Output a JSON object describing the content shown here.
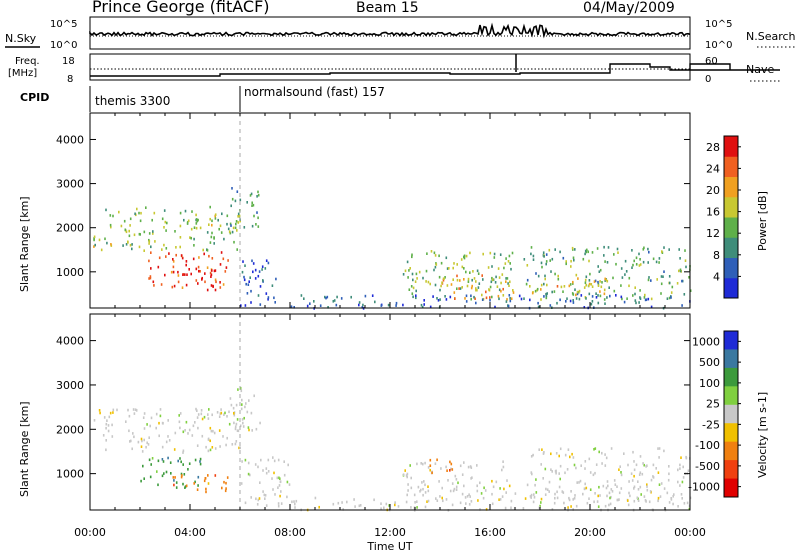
{
  "header": {
    "station": "Prince George (fitACF)",
    "beam": "Beam 15",
    "date": "04/May/2009"
  },
  "noise_panel": {
    "left_label": "N.Sky",
    "right_label": "N.Search",
    "left_ticks": [
      "10^5",
      "10^0"
    ],
    "right_ticks": [
      "10^5",
      "10^0"
    ]
  },
  "freq_panel": {
    "left_label_1": "Freq.",
    "left_label_2": "[MHz]",
    "right_label": "Nave",
    "left_ticks": [
      "18",
      "8"
    ],
    "right_ticks": [
      "60",
      "0"
    ]
  },
  "cpid": {
    "label": "CPID",
    "programs": [
      {
        "name": "themis 3300",
        "start_hour": 0
      },
      {
        "name": "normalsound (fast) 157",
        "start_hour": 6
      }
    ]
  },
  "x_axis": {
    "label": "Time UT",
    "ticks": [
      "00:00",
      "04:00",
      "08:00",
      "12:00",
      "16:00",
      "20:00",
      "00:00"
    ]
  },
  "chart_data": [
    {
      "type": "heatmap",
      "name": "power",
      "ylabel": "Slant Range [km]",
      "yticks": [
        "1000",
        "2000",
        "3000",
        "4000"
      ],
      "ylim": [
        180,
        4600
      ],
      "xlim_hours": [
        0,
        24
      ],
      "colorbar_label": "Power [dB]",
      "colorbar_ticks": [
        "4",
        "8",
        "12",
        "16",
        "20",
        "24",
        "28"
      ],
      "colorbar_range": [
        0,
        30
      ],
      "colors": [
        "#1f2bd6",
        "#2f5fb8",
        "#3f8d7a",
        "#5fb04a",
        "#c8c832",
        "#f0a020",
        "#f06020",
        "#e01010"
      ],
      "regions": [
        {
          "t": [
            0.1,
            6.0
          ],
          "r": [
            1500,
            2500
          ],
          "level": 14
        },
        {
          "t": [
            2.3,
            5.5
          ],
          "r": [
            600,
            1500
          ],
          "level": 26
        },
        {
          "t": [
            3.5,
            5.0
          ],
          "r": [
            700,
            1100
          ],
          "level": 30
        },
        {
          "t": [
            5.5,
            6.8
          ],
          "r": [
            2000,
            3000
          ],
          "level": 10
        },
        {
          "t": [
            6.0,
            7.5
          ],
          "r": [
            250,
            1400
          ],
          "level": 6
        },
        {
          "t": [
            12.5,
            17.0
          ],
          "r": [
            400,
            1500
          ],
          "level": 14
        },
        {
          "t": [
            14.0,
            17.0
          ],
          "r": [
            400,
            1000
          ],
          "level": 20
        },
        {
          "t": [
            17.3,
            24.0
          ],
          "r": [
            400,
            1600
          ],
          "level": 12
        },
        {
          "t": [
            17.5,
            21.0
          ],
          "r": [
            500,
            900
          ],
          "level": 18
        },
        {
          "t": [
            8.0,
            24.0
          ],
          "r": [
            200,
            500
          ],
          "level": 6
        }
      ]
    },
    {
      "type": "heatmap",
      "name": "velocity",
      "ylabel": "Slant Range [km]",
      "yticks": [
        "1000",
        "2000",
        "3000",
        "4000"
      ],
      "ylim": [
        180,
        4600
      ],
      "xlim_hours": [
        0,
        24
      ],
      "colorbar_label": "Velocity [m s-1]",
      "colorbar_ticks": [
        "1000",
        "500",
        "100",
        "25",
        "-25",
        "-100",
        "-500",
        "-1000"
      ],
      "colors": [
        "#1f2bd6",
        "#3a78a0",
        "#3c9a3c",
        "#80d040",
        "#c8c8c8",
        "#f0c000",
        "#f08010",
        "#f04010",
        "#e00000"
      ],
      "regions": [
        {
          "t": [
            0.1,
            6.0
          ],
          "r": [
            1500,
            2500
          ],
          "vel": 25
        },
        {
          "t": [
            2.0,
            4.5
          ],
          "r": [
            700,
            1400
          ],
          "vel": 100
        },
        {
          "t": [
            3.0,
            5.5
          ],
          "r": [
            600,
            1000
          ],
          "vel": -500
        },
        {
          "t": [
            5.5,
            6.8
          ],
          "r": [
            2000,
            3000
          ],
          "vel": 25
        },
        {
          "t": [
            6.0,
            8.0
          ],
          "r": [
            250,
            1400
          ],
          "vel": 25
        },
        {
          "t": [
            12.5,
            17.0
          ],
          "r": [
            400,
            1300
          ],
          "vel": 25
        },
        {
          "t": [
            13.5,
            14.5
          ],
          "r": [
            1000,
            1400
          ],
          "vel": -500
        },
        {
          "t": [
            17.3,
            24.0
          ],
          "r": [
            400,
            1600
          ],
          "vel": 25
        },
        {
          "t": [
            8.0,
            24.0
          ],
          "r": [
            200,
            500
          ],
          "vel": 25
        }
      ]
    }
  ]
}
